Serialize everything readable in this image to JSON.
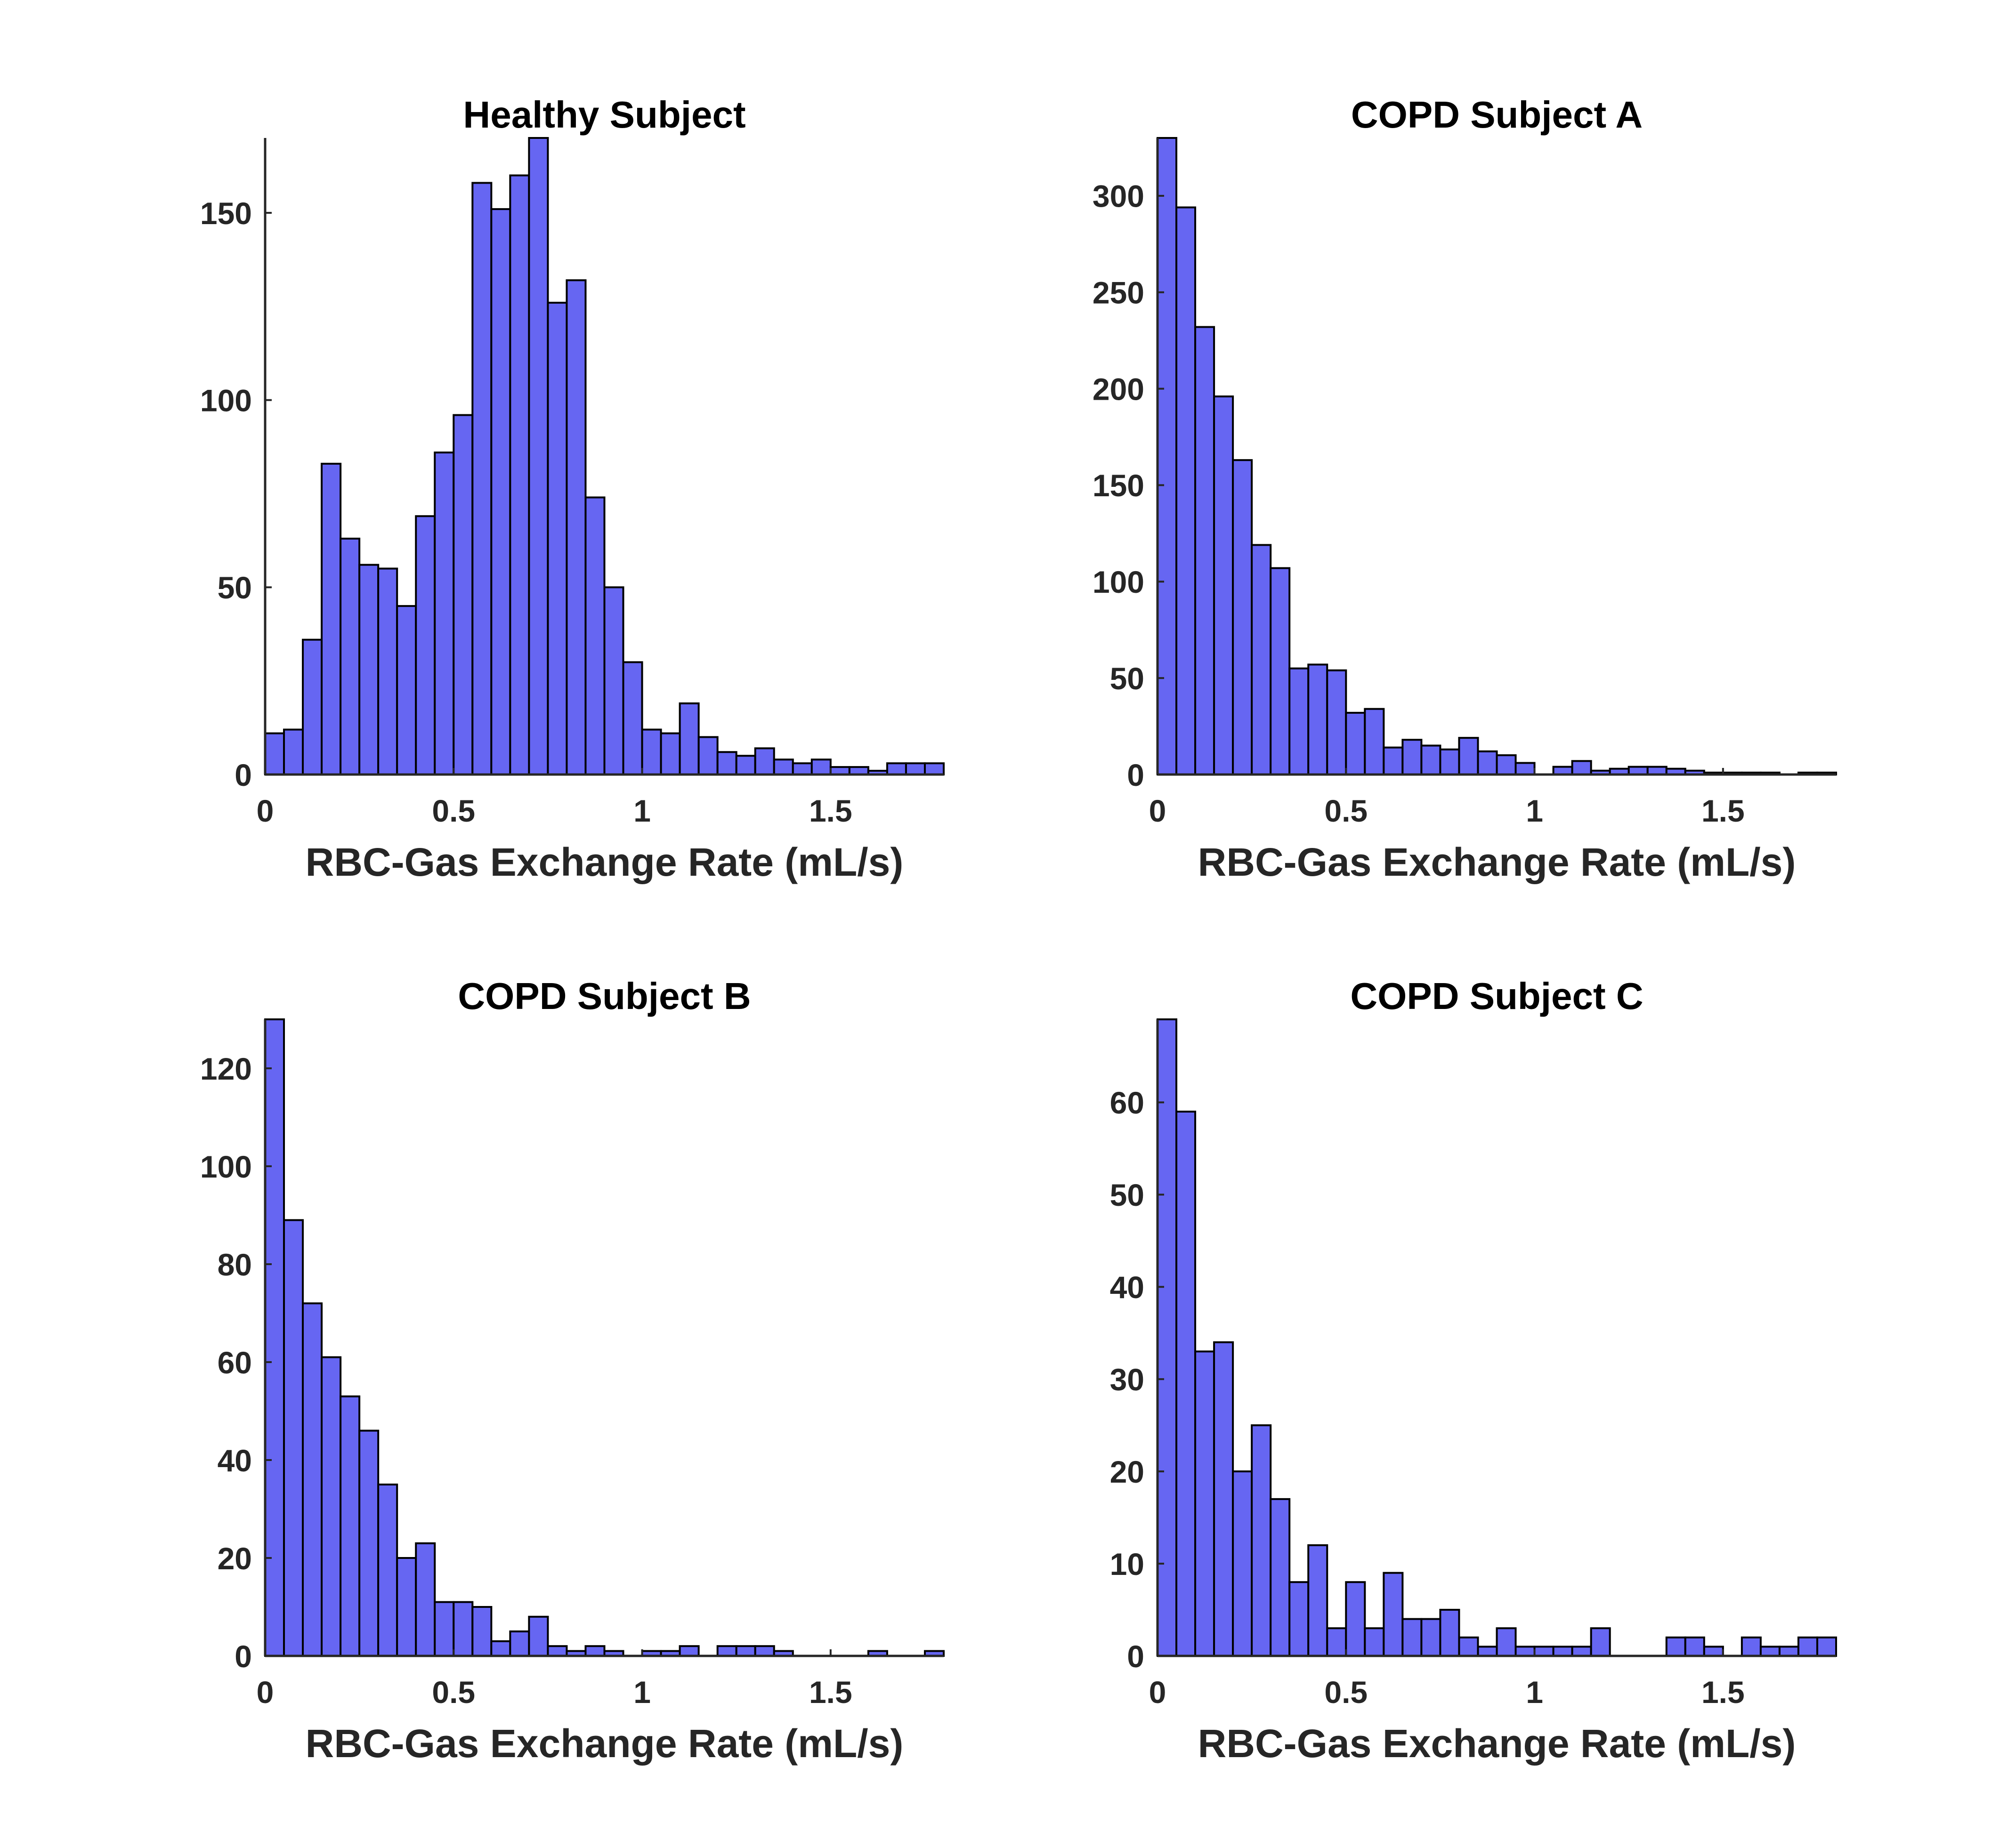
{
  "colors": {
    "bar_fill": "#6666F2",
    "bar_edge": "#000000",
    "axis": "#262626",
    "title": "#000000",
    "background": "#FFFFFF"
  },
  "chart_data": [
    {
      "type": "bar",
      "title": "Healthy Subject",
      "xlabel": "RBC-Gas Exchange Rate (mL/s)",
      "ylabel": "",
      "bin_edges": [
        0,
        0.05,
        0.1,
        0.15,
        0.2,
        0.25,
        0.3,
        0.35,
        0.4,
        0.45,
        0.5,
        0.55,
        0.6,
        0.65,
        0.7,
        0.75,
        0.8,
        0.85,
        0.9,
        0.95,
        1.0,
        1.05,
        1.1,
        1.15,
        1.2,
        1.25,
        1.3,
        1.35,
        1.4,
        1.45,
        1.5,
        1.55,
        1.6,
        1.65,
        1.7,
        1.75,
        1.8
      ],
      "values": [
        11,
        12,
        36,
        83,
        63,
        56,
        55,
        45,
        69,
        86,
        96,
        158,
        151,
        160,
        170,
        126,
        132,
        74,
        50,
        30,
        12,
        11,
        19,
        10,
        6,
        5,
        7,
        4,
        3,
        4,
        2,
        2,
        1,
        3,
        3,
        3
      ],
      "xlim": [
        0,
        1.8
      ],
      "ylim": [
        0,
        170
      ],
      "xticks": [
        0,
        0.5,
        1,
        1.5
      ],
      "xtick_labels": [
        "0",
        "0.5",
        "1",
        "1.5"
      ],
      "yticks": [
        0,
        50,
        100,
        150
      ],
      "ytick_labels": [
        "0",
        "50",
        "100",
        "150"
      ]
    },
    {
      "type": "bar",
      "title": "COPD Subject A",
      "xlabel": "RBC-Gas Exchange Rate (mL/s)",
      "ylabel": "",
      "bin_edges": [
        0,
        0.05,
        0.1,
        0.15,
        0.2,
        0.25,
        0.3,
        0.35,
        0.4,
        0.45,
        0.5,
        0.55,
        0.6,
        0.65,
        0.7,
        0.75,
        0.8,
        0.85,
        0.9,
        0.95,
        1.0,
        1.05,
        1.1,
        1.15,
        1.2,
        1.25,
        1.3,
        1.35,
        1.4,
        1.45,
        1.5,
        1.55,
        1.6,
        1.65,
        1.7,
        1.75,
        1.8
      ],
      "values": [
        330,
        294,
        232,
        196,
        163,
        119,
        107,
        55,
        57,
        54,
        32,
        34,
        14,
        18,
        15,
        13,
        19,
        12,
        10,
        6,
        0,
        4,
        7,
        2,
        3,
        4,
        4,
        3,
        2,
        1,
        1,
        1,
        1,
        0,
        1,
        1
      ],
      "xlim": [
        0,
        1.8
      ],
      "ylim": [
        0,
        330
      ],
      "xticks": [
        0,
        0.5,
        1,
        1.5
      ],
      "xtick_labels": [
        "0",
        "0.5",
        "1",
        "1.5"
      ],
      "yticks": [
        0,
        50,
        100,
        150,
        200,
        250,
        300
      ],
      "ytick_labels": [
        "0",
        "50",
        "100",
        "150",
        "200",
        "250",
        "300"
      ]
    },
    {
      "type": "bar",
      "title": "COPD Subject B",
      "xlabel": "RBC-Gas Exchange Rate (mL/s)",
      "ylabel": "",
      "bin_edges": [
        0,
        0.05,
        0.1,
        0.15,
        0.2,
        0.25,
        0.3,
        0.35,
        0.4,
        0.45,
        0.5,
        0.55,
        0.6,
        0.65,
        0.7,
        0.75,
        0.8,
        0.85,
        0.9,
        0.95,
        1.0,
        1.05,
        1.1,
        1.15,
        1.2,
        1.25,
        1.3,
        1.35,
        1.4,
        1.45,
        1.5,
        1.55,
        1.6,
        1.65,
        1.7,
        1.75,
        1.8
      ],
      "values": [
        130,
        89,
        72,
        61,
        53,
        46,
        35,
        20,
        23,
        11,
        11,
        10,
        3,
        5,
        8,
        2,
        1,
        2,
        1,
        0,
        1,
        1,
        2,
        0,
        2,
        2,
        2,
        1,
        0,
        0,
        0,
        0,
        1,
        0,
        0,
        1
      ],
      "xlim": [
        0,
        1.8
      ],
      "ylim": [
        0,
        130
      ],
      "xticks": [
        0,
        0.5,
        1,
        1.5
      ],
      "xtick_labels": [
        "0",
        "0.5",
        "1",
        "1.5"
      ],
      "yticks": [
        0,
        20,
        40,
        60,
        80,
        100,
        120
      ],
      "ytick_labels": [
        "0",
        "20",
        "40",
        "60",
        "80",
        "100",
        "120"
      ]
    },
    {
      "type": "bar",
      "title": "COPD Subject C",
      "xlabel": "RBC-Gas Exchange Rate (mL/s)",
      "ylabel": "",
      "bin_edges": [
        0,
        0.05,
        0.1,
        0.15,
        0.2,
        0.25,
        0.3,
        0.35,
        0.4,
        0.45,
        0.5,
        0.55,
        0.6,
        0.65,
        0.7,
        0.75,
        0.8,
        0.85,
        0.9,
        0.95,
        1.0,
        1.05,
        1.1,
        1.15,
        1.2,
        1.25,
        1.3,
        1.35,
        1.4,
        1.45,
        1.5,
        1.55,
        1.6,
        1.65,
        1.7,
        1.75,
        1.8
      ],
      "values": [
        69,
        59,
        33,
        34,
        20,
        25,
        17,
        8,
        12,
        3,
        8,
        3,
        9,
        4,
        4,
        5,
        2,
        1,
        3,
        1,
        1,
        1,
        1,
        3,
        0,
        0,
        0,
        2,
        2,
        1,
        0,
        2,
        1,
        1,
        2,
        2
      ],
      "xlim": [
        0,
        1.8
      ],
      "ylim": [
        0,
        69
      ],
      "xticks": [
        0,
        0.5,
        1,
        1.5
      ],
      "xtick_labels": [
        "0",
        "0.5",
        "1",
        "1.5"
      ],
      "yticks": [
        0,
        10,
        20,
        30,
        40,
        50,
        60
      ],
      "ytick_labels": [
        "0",
        "10",
        "20",
        "30",
        "40",
        "50",
        "60"
      ]
    }
  ]
}
